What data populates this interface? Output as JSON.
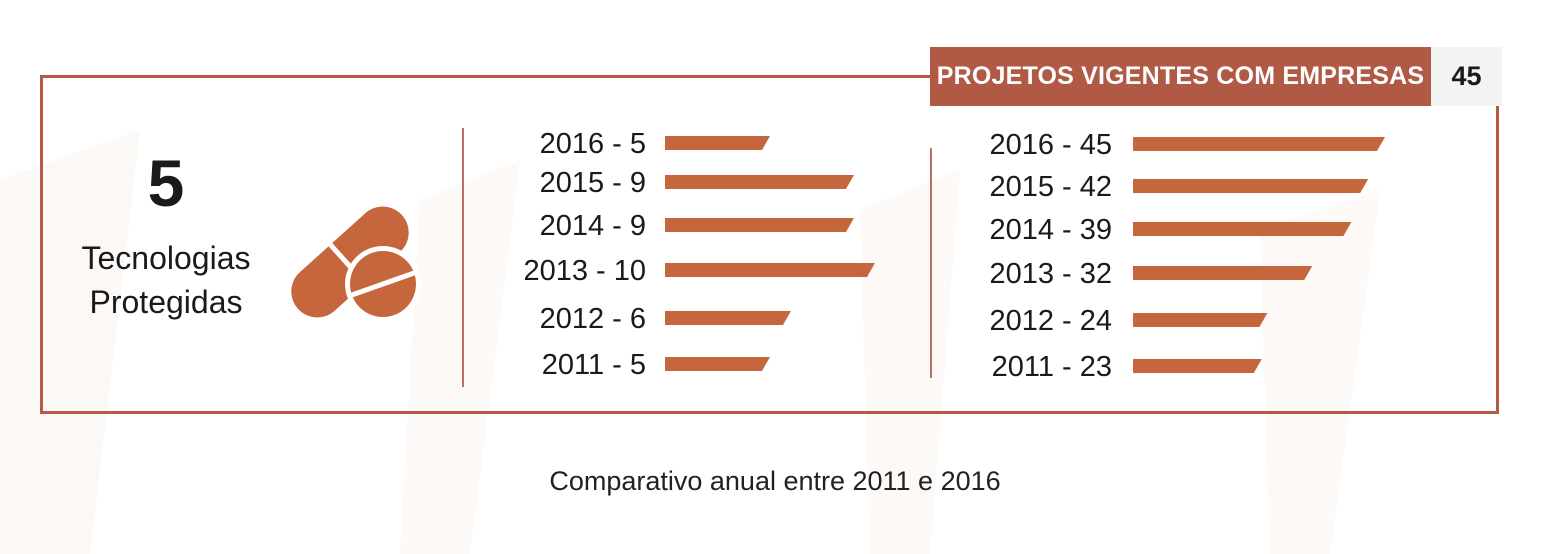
{
  "header": {
    "title": "PROJETOS VIGENTES COM EMPRESAS",
    "count": "45"
  },
  "technologies": {
    "count": "5",
    "label_line1": "Tecnologias",
    "label_line2": "Protegidas"
  },
  "caption": "Comparativo anual entre 2011 e 2016",
  "colors": {
    "bar": "#c6663d",
    "frame": "#b55a45",
    "header_bg": "#b05a46",
    "count_bg": "#f3f3f3"
  },
  "icons": {
    "technology": "pill-icon"
  },
  "chart_data": [
    {
      "type": "bar",
      "orientation": "horizontal",
      "categories": [
        "2016",
        "2015",
        "2014",
        "2013",
        "2012",
        "2011"
      ],
      "values": [
        5,
        9,
        9,
        10,
        6,
        5
      ],
      "labels": [
        "2016 - 5",
        "2015 - 9",
        "2014 - 9",
        "2013 - 10",
        "2012 - 6",
        "2011 - 5"
      ],
      "xlim": [
        0,
        10
      ]
    },
    {
      "type": "bar",
      "orientation": "horizontal",
      "categories": [
        "2016",
        "2015",
        "2014",
        "2013",
        "2012",
        "2011"
      ],
      "values": [
        45,
        42,
        39,
        32,
        24,
        23
      ],
      "labels": [
        "2016 - 45",
        "2015 - 42",
        "2014 - 39",
        "2013 - 32",
        "2012 - 24",
        "2011 - 23"
      ],
      "xlim": [
        0,
        45
      ]
    }
  ]
}
